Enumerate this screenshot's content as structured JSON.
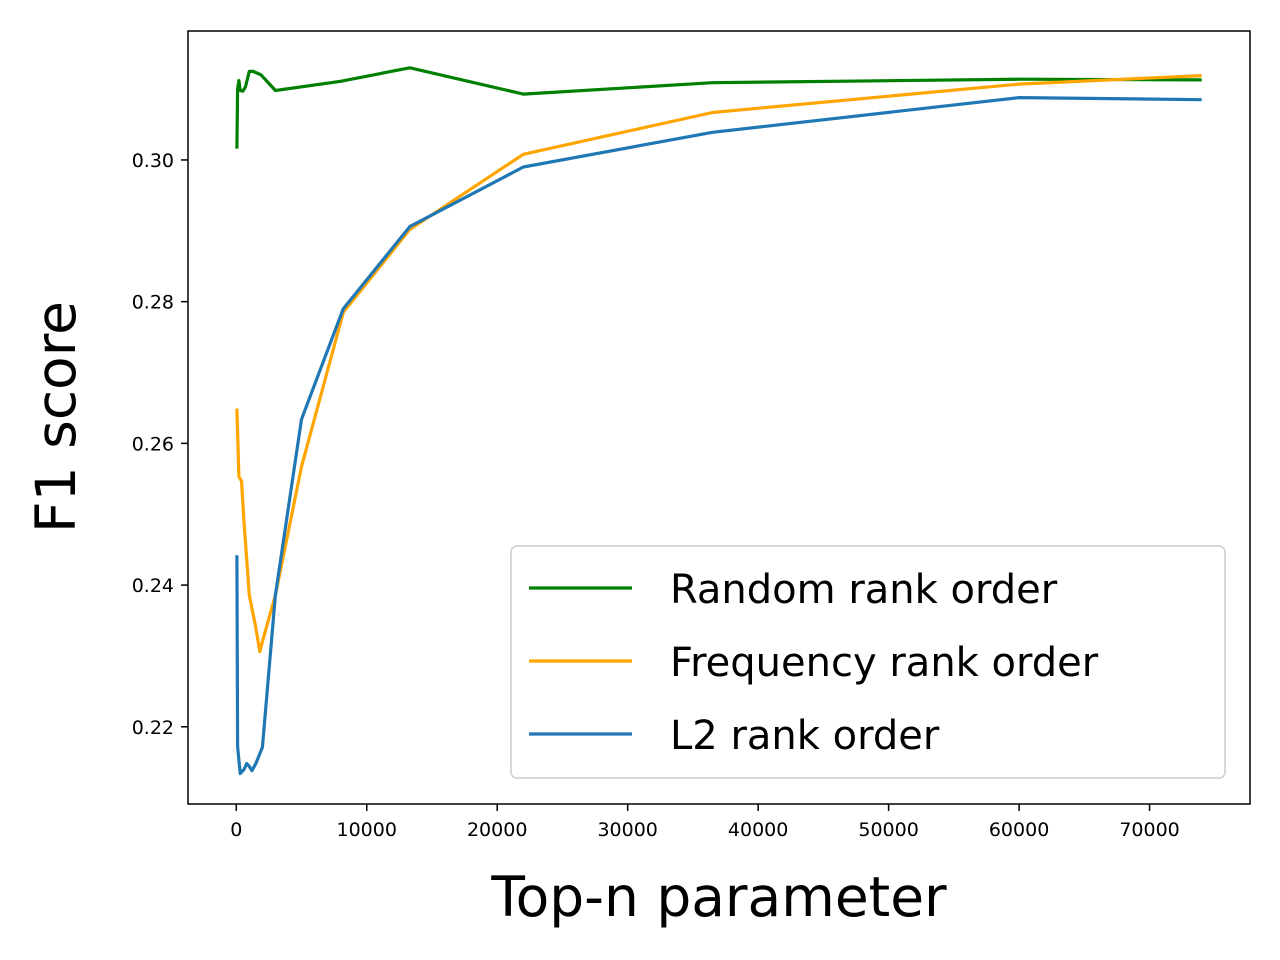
{
  "chart_data": {
    "type": "line",
    "xlabel": "Top-n parameter",
    "ylabel": "F1 score",
    "xlim": [
      -3700,
      77700
    ],
    "ylim": [
      0.2091,
      0.3182
    ],
    "xticks": [
      0,
      10000,
      20000,
      30000,
      40000,
      50000,
      60000,
      70000
    ],
    "xtick_labels": [
      "0",
      "10000",
      "20000",
      "30000",
      "40000",
      "50000",
      "60000",
      "70000"
    ],
    "yticks": [
      0.22,
      0.24,
      0.26,
      0.28,
      0.3
    ],
    "ytick_labels": [
      "0.22",
      "0.24",
      "0.26",
      "0.28",
      "0.30"
    ],
    "grid": false,
    "legend_position": "lower-right",
    "series": [
      {
        "name": "Random rank order",
        "color": "#008000",
        "x": [
          50,
          100,
          200,
          300,
          500,
          700,
          1000,
          1300,
          1900,
          3000,
          8000,
          13300,
          22000,
          36500,
          60000,
          74000
        ],
        "y": [
          0.3016,
          0.31,
          0.3112,
          0.3098,
          0.3097,
          0.3103,
          0.3125,
          0.3125,
          0.312,
          0.3098,
          0.3111,
          0.313,
          0.3093,
          0.3109,
          0.3114,
          0.3113
        ]
      },
      {
        "name": "Frequency rank order",
        "color": "#FFA500",
        "x": [
          50,
          200,
          400,
          600,
          1000,
          1500,
          1800,
          2000,
          3000,
          5000,
          8200,
          13300,
          22000,
          36500,
          60000,
          74000
        ],
        "y": [
          0.2649,
          0.2553,
          0.2547,
          0.2487,
          0.2386,
          0.234,
          0.2306,
          0.232,
          0.2386,
          0.2567,
          0.2785,
          0.2902,
          0.3008,
          0.3067,
          0.3107,
          0.3119
        ]
      },
      {
        "name": "L2 rank order",
        "color": "#1F77B4",
        "x": [
          50,
          100,
          300,
          600,
          800,
          1000,
          1200,
          1500,
          2000,
          3000,
          5000,
          8200,
          13300,
          22000,
          36500,
          60000,
          74000
        ],
        "y": [
          0.2442,
          0.2172,
          0.2134,
          0.214,
          0.2148,
          0.2144,
          0.2138,
          0.2148,
          0.2171,
          0.2386,
          0.2634,
          0.279,
          0.2906,
          0.299,
          0.3039,
          0.3088,
          0.3085
        ]
      }
    ]
  }
}
